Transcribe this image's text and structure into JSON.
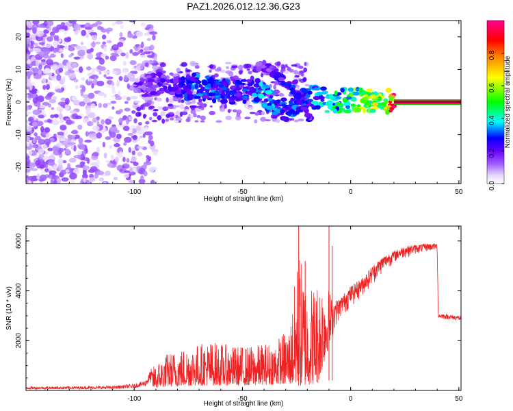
{
  "title": "PAZ1.2026.012.12.36.G23",
  "chart_data": [
    {
      "type": "heatmap",
      "title": "PAZ1.2026.012.12.36.G23",
      "xlabel": "Height of straight line (km)",
      "ylabel": "Frequency (Hz)",
      "xlim": [
        -150,
        51
      ],
      "ylim": [
        -25,
        25
      ],
      "xticks": [
        -100,
        -50,
        0,
        50
      ],
      "yticks": [
        -20,
        -10,
        0,
        10,
        20
      ],
      "grid": false,
      "colorbar": {
        "label": "Normalized spectral amplitude",
        "range": [
          0.0,
          1.0
        ],
        "ticks": [
          0.0,
          0.2,
          0.4,
          0.6,
          0.8
        ],
        "colormap": [
          "#ffffff",
          "#c6a6ff",
          "#7f00ff",
          "#0000ff",
          "#00ffff",
          "#00ff00",
          "#ffff00",
          "#ff8000",
          "#ff0000",
          "#ff0090"
        ]
      },
      "main_ridge": [
        {
          "x": -92,
          "y": 5,
          "amp": 0.18
        },
        {
          "x": -85,
          "y": 7,
          "amp": 0.2
        },
        {
          "x": -78,
          "y": 4,
          "amp": 0.25
        },
        {
          "x": -72,
          "y": 5,
          "amp": 0.3
        },
        {
          "x": -65,
          "y": 4,
          "amp": 0.3
        },
        {
          "x": -58,
          "y": 3.5,
          "amp": 0.28
        },
        {
          "x": -52,
          "y": 3,
          "amp": 0.25
        },
        {
          "x": -45,
          "y": 4,
          "amp": 0.3
        },
        {
          "x": -40,
          "y": 2,
          "amp": 0.35
        },
        {
          "x": -35,
          "y": -1,
          "amp": 0.3
        },
        {
          "x": -30,
          "y": -2,
          "amp": 0.28
        },
        {
          "x": -25,
          "y": 0,
          "amp": 0.3
        },
        {
          "x": -20,
          "y": 2,
          "amp": 0.3
        },
        {
          "x": -15,
          "y": 1,
          "amp": 0.35
        },
        {
          "x": -10,
          "y": 0.5,
          "amp": 0.4
        },
        {
          "x": -5,
          "y": 0.5,
          "amp": 0.45
        },
        {
          "x": 0,
          "y": 0.5,
          "amp": 0.5
        },
        {
          "x": 5,
          "y": 0.5,
          "amp": 0.55
        },
        {
          "x": 10,
          "y": 0.5,
          "amp": 0.6
        },
        {
          "x": 15,
          "y": 0.3,
          "amp": 0.55
        },
        {
          "x": 20,
          "y": 0,
          "amp": 0.95
        },
        {
          "x": 51,
          "y": 0,
          "amp": 0.95
        }
      ],
      "secondary_ridge": [
        {
          "x": -45,
          "y": 10,
          "amp": 0.15
        },
        {
          "x": -40,
          "y": 11,
          "amp": 0.18
        },
        {
          "x": -35,
          "y": 9,
          "amp": 0.22
        },
        {
          "x": -30,
          "y": 6,
          "amp": 0.25
        },
        {
          "x": -27,
          "y": 4,
          "amp": 0.28
        },
        {
          "x": -24,
          "y": 1,
          "amp": 0.3
        },
        {
          "x": -20,
          "y": -3,
          "amp": 0.25
        },
        {
          "x": -18,
          "y": -6,
          "amp": 0.2
        }
      ]
    },
    {
      "type": "line",
      "xlabel": "Height of straight line (km)",
      "ylabel": "SNR (10 * v/v)",
      "xlim": [
        -150,
        51
      ],
      "ylim": [
        0,
        6600
      ],
      "xticks": [
        -100,
        -50,
        0,
        50
      ],
      "yticks": [
        2000,
        4000,
        6000
      ],
      "grid": false,
      "series": [
        {
          "name": "SNR",
          "color": "#ee2222",
          "envelope": [
            {
              "x": -150,
              "lo": 0,
              "hi": 150
            },
            {
              "x": -110,
              "lo": 0,
              "hi": 180
            },
            {
              "x": -100,
              "lo": 30,
              "hi": 260
            },
            {
              "x": -95,
              "lo": 50,
              "hi": 400
            },
            {
              "x": -92,
              "lo": 80,
              "hi": 900
            },
            {
              "x": -85,
              "lo": 150,
              "hi": 1500
            },
            {
              "x": -75,
              "lo": 180,
              "hi": 1800
            },
            {
              "x": -65,
              "lo": 200,
              "hi": 2000
            },
            {
              "x": -55,
              "lo": 200,
              "hi": 1800
            },
            {
              "x": -45,
              "lo": 200,
              "hi": 1800
            },
            {
              "x": -35,
              "lo": 250,
              "hi": 2000
            },
            {
              "x": -28,
              "lo": 250,
              "hi": 2600
            },
            {
              "x": -24,
              "lo": 150,
              "hi": 5800
            },
            {
              "x": -20,
              "lo": 200,
              "hi": 4200
            },
            {
              "x": -15,
              "lo": 300,
              "hi": 4500
            },
            {
              "x": -12,
              "lo": 1200,
              "hi": 4700
            },
            {
              "x": -8,
              "lo": 2300,
              "hi": 3600
            },
            {
              "x": -5,
              "lo": 2800,
              "hi": 3700
            },
            {
              "x": 0,
              "lo": 3300,
              "hi": 4200
            },
            {
              "x": 5,
              "lo": 3700,
              "hi": 4500
            },
            {
              "x": 10,
              "lo": 4200,
              "hi": 5000
            },
            {
              "x": 15,
              "lo": 4700,
              "hi": 5400
            },
            {
              "x": 20,
              "lo": 5100,
              "hi": 5600
            },
            {
              "x": 25,
              "lo": 5300,
              "hi": 5800
            },
            {
              "x": 30,
              "lo": 5450,
              "hi": 5850
            },
            {
              "x": 35,
              "lo": 5550,
              "hi": 5900
            },
            {
              "x": 40,
              "lo": 5600,
              "hi": 5900
            },
            {
              "x": 40.5,
              "lo": 2900,
              "hi": 3100
            },
            {
              "x": 51,
              "lo": 2800,
              "hi": 3000
            }
          ],
          "spikes": [
            {
              "x": -24,
              "y": 6600
            },
            {
              "x": -21,
              "y": 5200
            },
            {
              "x": -10,
              "y": 6600
            },
            {
              "x": -8.5,
              "y": 5800
            }
          ]
        }
      ]
    }
  ]
}
